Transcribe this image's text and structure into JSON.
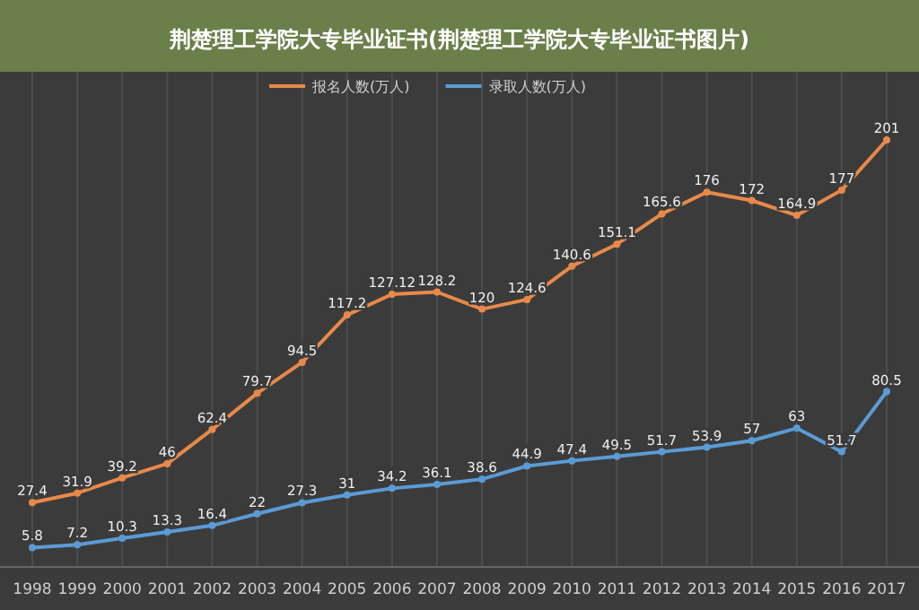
{
  "chart_data": {
    "type": "line",
    "title": "荆楚理工学院大专毕业证书(荆楚理工学院大专毕业证书图片)",
    "categories": [
      "1998",
      "1999",
      "2000",
      "2001",
      "2002",
      "2003",
      "2004",
      "2005",
      "2006",
      "2007",
      "2008",
      "2009",
      "2010",
      "2011",
      "2012",
      "2013",
      "2014",
      "2015",
      "2016",
      "2017"
    ],
    "series": [
      {
        "name": "报名人数(万人)",
        "color": "#e8894a",
        "values": [
          27.4,
          31.9,
          39.2,
          46,
          62.4,
          79.7,
          94.5,
          117.2,
          127.12,
          128.2,
          120,
          124.6,
          140.6,
          151.1,
          165.6,
          176,
          172,
          164.9,
          177,
          201
        ]
      },
      {
        "name": "录取人数(万人)",
        "color": "#5b9bd5",
        "values": [
          5.8,
          7.2,
          10.3,
          13.3,
          16.4,
          22,
          27.3,
          31,
          34.2,
          36.1,
          38.6,
          44.9,
          47.4,
          49.5,
          51.7,
          53.9,
          57,
          63,
          51.7,
          80.5
        ]
      }
    ],
    "data_labels": true,
    "grid": "x",
    "legend": "top",
    "marker": "circle",
    "line_style": "solid"
  }
}
